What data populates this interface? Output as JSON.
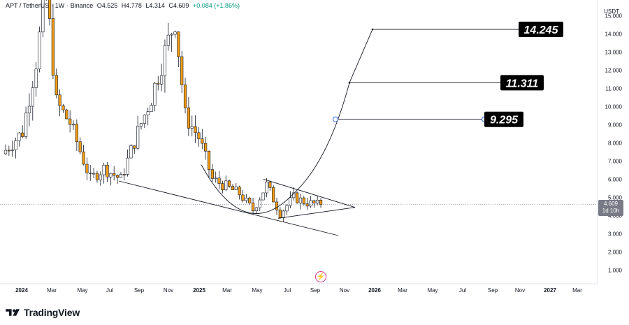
{
  "legend": {
    "symbol": "APT / TetherUS",
    "interval": "1W",
    "exchange": "Binance",
    "open": "O4.525",
    "high": "H4.778",
    "low": "L4.314",
    "close": "C4.609",
    "change": "+0.084 (+1.86%)"
  },
  "currency_label": "USDT",
  "current_price": {
    "value": "4.609",
    "countdown": "1d 10h"
  },
  "brand": "TradingView",
  "colors": {
    "up": "#ffffff",
    "down": "#f39c12",
    "wick": "#131722",
    "line": "#131722",
    "accent": "#2962ff"
  },
  "chart_data": {
    "type": "candlestick",
    "x_ticks": [
      "2024",
      "Mar",
      "May",
      "Jul",
      "Sep",
      "Nov",
      "2025",
      "Mar",
      "May",
      "Jul",
      "Sep",
      "Nov",
      "2026",
      "Mar",
      "May",
      "Jul",
      "Sep",
      "Nov",
      "2027",
      "Mar"
    ],
    "y_ticks": [
      "15.000",
      "14.000",
      "13.000",
      "12.000",
      "11.000",
      "10.000",
      "9.000",
      "8.000",
      "7.000",
      "6.000",
      "5.000",
      "4.000",
      "3.000",
      "2.000",
      "1.000"
    ],
    "ylim": [
      0,
      15.5
    ],
    "series_trend": [
      {
        "t": 0,
        "v": 7.4
      },
      {
        "t": 6,
        "v": 8.6
      },
      {
        "t": 10,
        "v": 12.5
      },
      {
        "t": 13,
        "v": 16.5
      },
      {
        "t": 16,
        "v": 10.2
      },
      {
        "t": 20,
        "v": 9.1
      },
      {
        "t": 26,
        "v": 6.0
      },
      {
        "t": 30,
        "v": 6.6
      },
      {
        "t": 35,
        "v": 6.0
      },
      {
        "t": 40,
        "v": 8.6
      },
      {
        "t": 44,
        "v": 10.5
      },
      {
        "t": 48,
        "v": 13.0
      },
      {
        "t": 51,
        "v": 14.8
      },
      {
        "t": 54,
        "v": 9.5
      },
      {
        "t": 58,
        "v": 8.3
      },
      {
        "t": 62,
        "v": 6.0
      },
      {
        "t": 66,
        "v": 5.6
      },
      {
        "t": 70,
        "v": 5.2
      },
      {
        "t": 74,
        "v": 4.3
      },
      {
        "t": 78,
        "v": 5.7
      },
      {
        "t": 82,
        "v": 4.1
      },
      {
        "t": 86,
        "v": 5.0
      },
      {
        "t": 90,
        "v": 4.7
      },
      {
        "t": 93,
        "v": 4.61
      }
    ],
    "targets": [
      {
        "label": "14.245",
        "value": 14.245
      },
      {
        "label": "11.311",
        "value": 11.311
      },
      {
        "label": "9.295",
        "value": 9.295
      }
    ]
  }
}
